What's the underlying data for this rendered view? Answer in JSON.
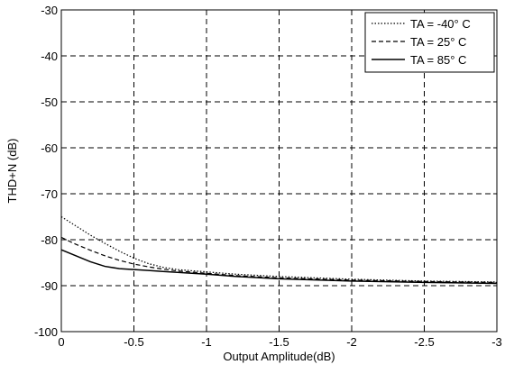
{
  "chart_data": {
    "type": "line",
    "title": "",
    "xlabel": "Output Amplitude(dB)",
    "ylabel": "THD+N (dB)",
    "xlim": [
      0,
      -3
    ],
    "ylim": [
      -100,
      -30
    ],
    "x_ticks": [
      0,
      -0.5,
      -1,
      -1.5,
      -2,
      -2.5,
      -3
    ],
    "x_tick_labels": [
      "0",
      "-0.5",
      "-1",
      "-1.5",
      "-2",
      "-2.5",
      "-3"
    ],
    "y_ticks": [
      -30,
      -40,
      -50,
      -60,
      -70,
      -80,
      -90,
      -100
    ],
    "y_tick_labels": [
      "-30",
      "-40",
      "-50",
      "-60",
      "-70",
      "-80",
      "-90",
      "-100"
    ],
    "grid": true,
    "legend_position": "top-right",
    "series": [
      {
        "name": "TA = -40° C",
        "line_style": "dotted",
        "x": [
          0,
          -0.1,
          -0.2,
          -0.3,
          -0.4,
          -0.5,
          -0.6,
          -0.7,
          -0.8,
          -1.0,
          -1.2,
          -1.5,
          -2.0,
          -2.5,
          -3.0
        ],
        "y": [
          -75,
          -77,
          -79,
          -80.8,
          -82.5,
          -84,
          -85.2,
          -86,
          -86.5,
          -87,
          -87.5,
          -88,
          -88.6,
          -89,
          -89.2
        ]
      },
      {
        "name": "TA = 25° C",
        "line_style": "dashed",
        "x": [
          0,
          -0.1,
          -0.2,
          -0.3,
          -0.4,
          -0.5,
          -0.6,
          -0.7,
          -0.8,
          -1.0,
          -1.2,
          -1.5,
          -2.0,
          -2.5,
          -3.0
        ],
        "y": [
          -79.5,
          -81,
          -82.3,
          -83.5,
          -84.5,
          -85.3,
          -85.9,
          -86.4,
          -86.8,
          -87.3,
          -87.8,
          -88.3,
          -88.8,
          -89.1,
          -89.3
        ]
      },
      {
        "name": "TA = 85° C",
        "line_style": "solid",
        "x": [
          0,
          -0.1,
          -0.2,
          -0.3,
          -0.4,
          -0.5,
          -0.6,
          -0.7,
          -0.8,
          -1.0,
          -1.2,
          -1.5,
          -2.0,
          -2.5,
          -3.0
        ],
        "y": [
          -82.2,
          -83.5,
          -84.8,
          -85.8,
          -86.3,
          -86.5,
          -86.7,
          -86.9,
          -87.1,
          -87.5,
          -88,
          -88.5,
          -89,
          -89.3,
          -89.5
        ]
      }
    ]
  }
}
